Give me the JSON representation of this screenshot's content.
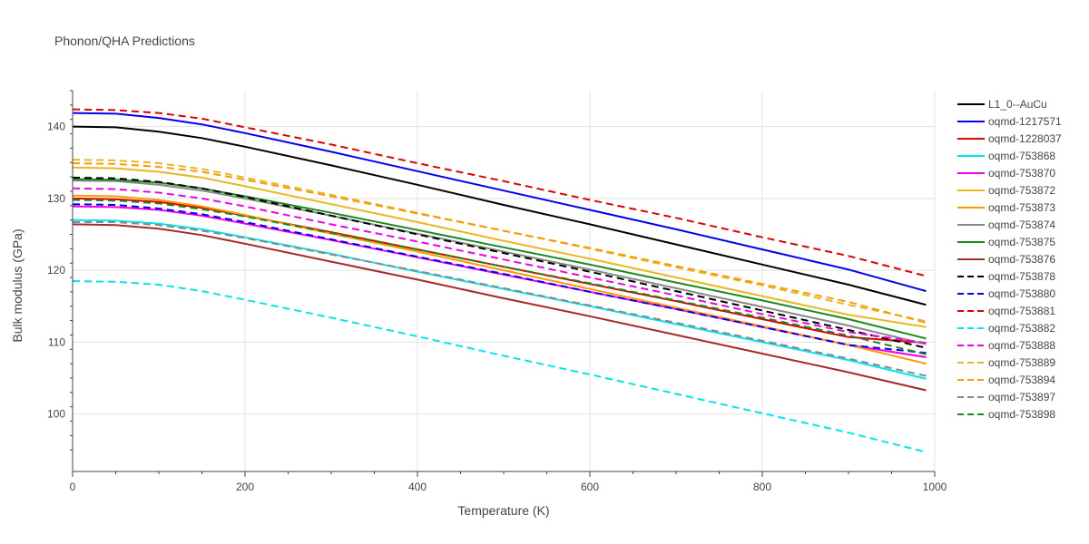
{
  "chart_data": {
    "type": "line",
    "title": "Phonon/QHA Predictions",
    "xlabel": "Temperature (K)",
    "ylabel": "Bulk modulus (GPa)",
    "xlim": [
      0,
      1000
    ],
    "ylim": [
      92,
      145
    ],
    "xticks": [
      0,
      200,
      400,
      600,
      800,
      1000
    ],
    "yticks": [
      100,
      110,
      120,
      130,
      140
    ],
    "grid": true,
    "legend_position": "right",
    "x": [
      0,
      50,
      100,
      150,
      200,
      300,
      400,
      500,
      600,
      700,
      800,
      900,
      990
    ],
    "series": [
      {
        "name": "L1_0--AuCu",
        "color": "#000000",
        "dash": "solid",
        "values": [
          140.0,
          139.9,
          139.3,
          138.4,
          137.2,
          134.6,
          131.9,
          129.1,
          126.4,
          123.6,
          120.8,
          118.0,
          115.2
        ]
      },
      {
        "name": "oqmd-1217571",
        "color": "#0000ee",
        "dash": "solid",
        "values": [
          141.9,
          141.8,
          141.2,
          140.3,
          139.1,
          136.5,
          133.8,
          131.1,
          128.4,
          125.7,
          122.9,
          120.1,
          117.1
        ]
      },
      {
        "name": "oqmd-1228037",
        "color": "#e00000",
        "dash": "solid",
        "values": [
          130.0,
          129.9,
          129.5,
          128.7,
          127.6,
          125.3,
          122.9,
          120.5,
          118.1,
          115.7,
          113.2,
          110.7,
          109.9
        ]
      },
      {
        "name": "oqmd-753868",
        "color": "#00e5ee",
        "dash": "solid",
        "values": [
          127.0,
          126.9,
          126.5,
          125.7,
          124.6,
          122.3,
          119.8,
          117.4,
          115.0,
          112.5,
          110.0,
          107.5,
          104.9
        ]
      },
      {
        "name": "oqmd-753870",
        "color": "#ee00ee",
        "dash": "solid",
        "values": [
          128.9,
          128.8,
          128.4,
          127.6,
          126.5,
          124.2,
          121.8,
          119.4,
          117.0,
          114.6,
          112.1,
          109.6,
          107.9
        ]
      },
      {
        "name": "oqmd-753872",
        "color": "#e8b820",
        "dash": "solid",
        "values": [
          134.3,
          134.2,
          133.7,
          132.9,
          131.7,
          129.2,
          126.7,
          124.1,
          121.6,
          119.0,
          116.4,
          113.8,
          112.1
        ]
      },
      {
        "name": "oqmd-753873",
        "color": "#ff9900",
        "dash": "solid",
        "values": [
          130.4,
          130.3,
          129.8,
          128.9,
          127.7,
          125.1,
          122.6,
          120.0,
          117.4,
          114.8,
          112.2,
          109.6,
          107.0
        ]
      },
      {
        "name": "oqmd-753874",
        "color": "#888888",
        "dash": "solid",
        "values": [
          132.5,
          132.4,
          131.9,
          131.1,
          130.0,
          127.6,
          125.1,
          122.6,
          120.1,
          117.5,
          114.9,
          112.3,
          109.7
        ]
      },
      {
        "name": "oqmd-753875",
        "color": "#1a8a1a",
        "dash": "solid",
        "values": [
          132.7,
          132.6,
          132.2,
          131.4,
          130.3,
          128.0,
          125.6,
          123.2,
          120.8,
          118.3,
          115.8,
          113.2,
          110.5
        ]
      },
      {
        "name": "oqmd-753876",
        "color": "#a52a2a",
        "dash": "solid",
        "values": [
          126.4,
          126.3,
          125.8,
          124.9,
          123.7,
          121.2,
          118.7,
          116.1,
          113.6,
          111.0,
          108.4,
          105.8,
          103.3
        ]
      },
      {
        "name": "oqmd-753878",
        "color": "#000000",
        "dash": "dash",
        "values": [
          132.9,
          132.8,
          132.3,
          131.4,
          130.2,
          127.6,
          125.0,
          122.4,
          119.8,
          117.1,
          114.4,
          111.7,
          109.2
        ]
      },
      {
        "name": "oqmd-753880",
        "color": "#0000ee",
        "dash": "dash",
        "values": [
          129.2,
          129.1,
          128.6,
          127.8,
          126.7,
          124.3,
          121.9,
          119.5,
          117.0,
          114.6,
          112.1,
          109.6,
          108.5
        ]
      },
      {
        "name": "oqmd-753881",
        "color": "#e00000",
        "dash": "dash",
        "values": [
          142.4,
          142.3,
          141.9,
          141.1,
          139.9,
          137.5,
          134.9,
          132.4,
          129.8,
          127.3,
          124.6,
          122.0,
          119.2
        ]
      },
      {
        "name": "oqmd-753882",
        "color": "#00e5ee",
        "dash": "dash",
        "values": [
          118.5,
          118.4,
          118.0,
          117.1,
          115.9,
          113.4,
          110.8,
          108.1,
          105.5,
          102.8,
          100.1,
          97.4,
          94.7
        ]
      },
      {
        "name": "oqmd-753888",
        "color": "#ee00ee",
        "dash": "dash",
        "values": [
          131.4,
          131.3,
          130.8,
          130.0,
          128.9,
          126.4,
          124.0,
          121.5,
          119.0,
          116.5,
          113.9,
          111.4,
          109.9
        ]
      },
      {
        "name": "oqmd-753889",
        "color": "#e8b820",
        "dash": "dash",
        "values": [
          135.4,
          135.3,
          134.9,
          134.1,
          132.9,
          130.5,
          128.0,
          125.5,
          123.0,
          120.4,
          117.9,
          115.2,
          112.9
        ]
      },
      {
        "name": "oqmd-753894",
        "color": "#ff9900",
        "dash": "dash",
        "values": [
          134.9,
          134.8,
          134.4,
          133.7,
          132.6,
          130.3,
          127.9,
          125.5,
          123.1,
          120.6,
          118.1,
          115.6,
          112.7
        ]
      },
      {
        "name": "oqmd-753897",
        "color": "#888888",
        "dash": "dash",
        "values": [
          126.7,
          126.7,
          126.3,
          125.5,
          124.5,
          122.2,
          119.9,
          117.5,
          115.1,
          112.7,
          110.2,
          107.7,
          105.3
        ]
      },
      {
        "name": "oqmd-753898",
        "color": "#1a8a1a",
        "dash": "dash",
        "values": [
          129.8,
          129.7,
          129.3,
          128.5,
          127.5,
          125.2,
          122.9,
          120.5,
          118.2,
          115.8,
          113.4,
          110.9,
          108.3
        ]
      }
    ]
  }
}
